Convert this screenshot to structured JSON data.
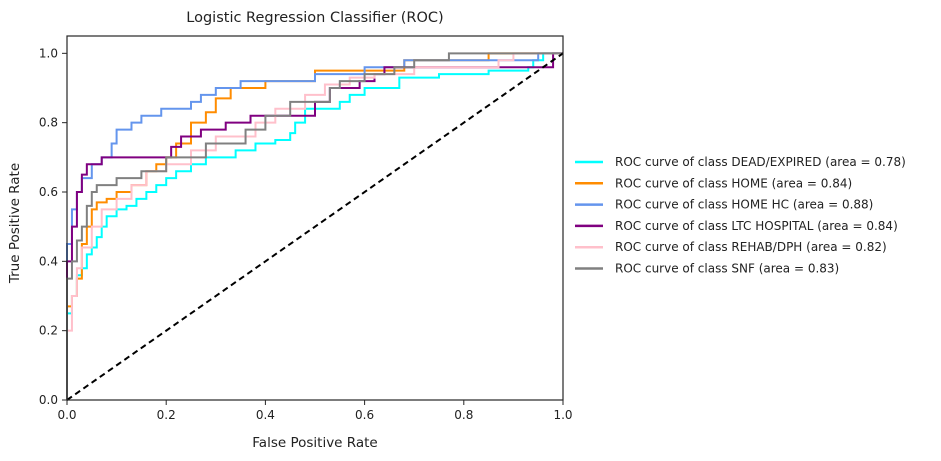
{
  "chart_data": {
    "type": "line",
    "title": "Logistic Regression Classifier (ROC)",
    "xlabel": "False Positive Rate",
    "ylabel": "True Positive Rate",
    "xlim": [
      0.0,
      1.0
    ],
    "ylim": [
      0.0,
      1.05
    ],
    "xticks": [
      0.0,
      0.2,
      0.4,
      0.6,
      0.8,
      1.0
    ],
    "yticks": [
      0.0,
      0.2,
      0.4,
      0.6,
      0.8,
      1.0
    ],
    "xtick_labels": [
      "0.0",
      "0.2",
      "0.4",
      "0.6",
      "0.8",
      "1.0"
    ],
    "ytick_labels": [
      "0.0",
      "0.2",
      "0.4",
      "0.6",
      "0.8",
      "1.0"
    ],
    "grid": false,
    "legend_position": "outside-right",
    "diagonal": {
      "x": [
        0,
        1
      ],
      "y": [
        0,
        1
      ],
      "color": "#000000",
      "style": "dashed"
    },
    "series": [
      {
        "name": "ROC curve of class DEAD/EXPIRED (area = 0.78)",
        "color": "#00FFFF",
        "points": [
          [
            0.0,
            0.0
          ],
          [
            0.0,
            0.25
          ],
          [
            0.01,
            0.25
          ],
          [
            0.01,
            0.3
          ],
          [
            0.02,
            0.3
          ],
          [
            0.02,
            0.36
          ],
          [
            0.03,
            0.36
          ],
          [
            0.03,
            0.38
          ],
          [
            0.04,
            0.38
          ],
          [
            0.04,
            0.42
          ],
          [
            0.05,
            0.42
          ],
          [
            0.05,
            0.44
          ],
          [
            0.06,
            0.44
          ],
          [
            0.06,
            0.47
          ],
          [
            0.07,
            0.47
          ],
          [
            0.07,
            0.5
          ],
          [
            0.08,
            0.5
          ],
          [
            0.08,
            0.53
          ],
          [
            0.1,
            0.53
          ],
          [
            0.1,
            0.55
          ],
          [
            0.12,
            0.55
          ],
          [
            0.12,
            0.56
          ],
          [
            0.14,
            0.56
          ],
          [
            0.14,
            0.58
          ],
          [
            0.16,
            0.58
          ],
          [
            0.16,
            0.6
          ],
          [
            0.18,
            0.6
          ],
          [
            0.18,
            0.62
          ],
          [
            0.2,
            0.62
          ],
          [
            0.2,
            0.64
          ],
          [
            0.22,
            0.64
          ],
          [
            0.22,
            0.66
          ],
          [
            0.25,
            0.66
          ],
          [
            0.25,
            0.68
          ],
          [
            0.28,
            0.68
          ],
          [
            0.28,
            0.7
          ],
          [
            0.34,
            0.7
          ],
          [
            0.34,
            0.72
          ],
          [
            0.38,
            0.72
          ],
          [
            0.38,
            0.74
          ],
          [
            0.42,
            0.74
          ],
          [
            0.42,
            0.75
          ],
          [
            0.45,
            0.75
          ],
          [
            0.45,
            0.77
          ],
          [
            0.46,
            0.77
          ],
          [
            0.46,
            0.8
          ],
          [
            0.48,
            0.8
          ],
          [
            0.48,
            0.84
          ],
          [
            0.55,
            0.84
          ],
          [
            0.55,
            0.86
          ],
          [
            0.57,
            0.86
          ],
          [
            0.57,
            0.88
          ],
          [
            0.6,
            0.88
          ],
          [
            0.6,
            0.9
          ],
          [
            0.67,
            0.9
          ],
          [
            0.67,
            0.93
          ],
          [
            0.75,
            0.93
          ],
          [
            0.75,
            0.94
          ],
          [
            0.85,
            0.94
          ],
          [
            0.85,
            0.95
          ],
          [
            0.93,
            0.95
          ],
          [
            0.93,
            0.96
          ],
          [
            0.94,
            0.96
          ],
          [
            0.94,
            0.98
          ],
          [
            0.96,
            0.98
          ],
          [
            0.96,
            1.0
          ],
          [
            1.0,
            1.0
          ]
        ]
      },
      {
        "name": "ROC curve of class HOME (area = 0.84)",
        "color": "#FF8C00",
        "points": [
          [
            0.0,
            0.0
          ],
          [
            0.0,
            0.27
          ],
          [
            0.01,
            0.27
          ],
          [
            0.01,
            0.3
          ],
          [
            0.02,
            0.3
          ],
          [
            0.02,
            0.35
          ],
          [
            0.03,
            0.35
          ],
          [
            0.03,
            0.45
          ],
          [
            0.04,
            0.45
          ],
          [
            0.04,
            0.5
          ],
          [
            0.05,
            0.5
          ],
          [
            0.05,
            0.55
          ],
          [
            0.06,
            0.55
          ],
          [
            0.06,
            0.57
          ],
          [
            0.08,
            0.57
          ],
          [
            0.08,
            0.58
          ],
          [
            0.1,
            0.58
          ],
          [
            0.1,
            0.6
          ],
          [
            0.13,
            0.6
          ],
          [
            0.13,
            0.62
          ],
          [
            0.16,
            0.62
          ],
          [
            0.16,
            0.66
          ],
          [
            0.18,
            0.66
          ],
          [
            0.18,
            0.68
          ],
          [
            0.2,
            0.68
          ],
          [
            0.2,
            0.7
          ],
          [
            0.22,
            0.7
          ],
          [
            0.22,
            0.74
          ],
          [
            0.25,
            0.74
          ],
          [
            0.25,
            0.8
          ],
          [
            0.28,
            0.8
          ],
          [
            0.28,
            0.83
          ],
          [
            0.3,
            0.83
          ],
          [
            0.3,
            0.87
          ],
          [
            0.33,
            0.87
          ],
          [
            0.33,
            0.9
          ],
          [
            0.4,
            0.9
          ],
          [
            0.4,
            0.92
          ],
          [
            0.5,
            0.92
          ],
          [
            0.5,
            0.95
          ],
          [
            0.68,
            0.95
          ],
          [
            0.68,
            0.98
          ],
          [
            0.85,
            0.98
          ],
          [
            0.85,
            1.0
          ],
          [
            1.0,
            1.0
          ]
        ]
      },
      {
        "name": "ROC curve of class HOME HC (area = 0.88)",
        "color": "#6495ED",
        "points": [
          [
            0.0,
            0.0
          ],
          [
            0.0,
            0.45
          ],
          [
            0.01,
            0.45
          ],
          [
            0.01,
            0.55
          ],
          [
            0.02,
            0.55
          ],
          [
            0.02,
            0.6
          ],
          [
            0.03,
            0.6
          ],
          [
            0.03,
            0.64
          ],
          [
            0.05,
            0.64
          ],
          [
            0.05,
            0.68
          ],
          [
            0.07,
            0.68
          ],
          [
            0.07,
            0.7
          ],
          [
            0.09,
            0.7
          ],
          [
            0.09,
            0.74
          ],
          [
            0.1,
            0.74
          ],
          [
            0.1,
            0.78
          ],
          [
            0.13,
            0.78
          ],
          [
            0.13,
            0.8
          ],
          [
            0.15,
            0.8
          ],
          [
            0.15,
            0.82
          ],
          [
            0.19,
            0.82
          ],
          [
            0.19,
            0.84
          ],
          [
            0.25,
            0.84
          ],
          [
            0.25,
            0.86
          ],
          [
            0.27,
            0.86
          ],
          [
            0.27,
            0.88
          ],
          [
            0.3,
            0.88
          ],
          [
            0.3,
            0.9
          ],
          [
            0.35,
            0.9
          ],
          [
            0.35,
            0.92
          ],
          [
            0.5,
            0.92
          ],
          [
            0.5,
            0.94
          ],
          [
            0.6,
            0.94
          ],
          [
            0.6,
            0.96
          ],
          [
            0.68,
            0.96
          ],
          [
            0.68,
            0.98
          ],
          [
            0.95,
            0.98
          ],
          [
            0.95,
            1.0
          ],
          [
            1.0,
            1.0
          ]
        ]
      },
      {
        "name": "ROC curve of class LTC HOSPITAL (area = 0.84)",
        "color": "#800080",
        "points": [
          [
            0.0,
            0.0
          ],
          [
            0.0,
            0.4
          ],
          [
            0.01,
            0.4
          ],
          [
            0.01,
            0.5
          ],
          [
            0.02,
            0.5
          ],
          [
            0.02,
            0.6
          ],
          [
            0.03,
            0.6
          ],
          [
            0.03,
            0.65
          ],
          [
            0.04,
            0.65
          ],
          [
            0.04,
            0.68
          ],
          [
            0.07,
            0.68
          ],
          [
            0.07,
            0.7
          ],
          [
            0.21,
            0.7
          ],
          [
            0.21,
            0.73
          ],
          [
            0.23,
            0.73
          ],
          [
            0.23,
            0.76
          ],
          [
            0.27,
            0.76
          ],
          [
            0.27,
            0.78
          ],
          [
            0.32,
            0.78
          ],
          [
            0.32,
            0.8
          ],
          [
            0.37,
            0.8
          ],
          [
            0.37,
            0.82
          ],
          [
            0.5,
            0.82
          ],
          [
            0.5,
            0.86
          ],
          [
            0.53,
            0.86
          ],
          [
            0.53,
            0.9
          ],
          [
            0.59,
            0.9
          ],
          [
            0.59,
            0.92
          ],
          [
            0.62,
            0.92
          ],
          [
            0.62,
            0.94
          ],
          [
            0.64,
            0.94
          ],
          [
            0.64,
            0.96
          ],
          [
            0.98,
            0.96
          ],
          [
            0.98,
            1.0
          ],
          [
            1.0,
            1.0
          ]
        ]
      },
      {
        "name": "ROC curve of class REHAB/DPH (area = 0.82)",
        "color": "#FFC0CB",
        "points": [
          [
            0.0,
            0.0
          ],
          [
            0.0,
            0.2
          ],
          [
            0.01,
            0.2
          ],
          [
            0.01,
            0.3
          ],
          [
            0.02,
            0.3
          ],
          [
            0.02,
            0.38
          ],
          [
            0.03,
            0.38
          ],
          [
            0.03,
            0.44
          ],
          [
            0.05,
            0.44
          ],
          [
            0.05,
            0.5
          ],
          [
            0.07,
            0.5
          ],
          [
            0.07,
            0.55
          ],
          [
            0.1,
            0.55
          ],
          [
            0.1,
            0.58
          ],
          [
            0.13,
            0.58
          ],
          [
            0.13,
            0.62
          ],
          [
            0.16,
            0.62
          ],
          [
            0.16,
            0.66
          ],
          [
            0.2,
            0.66
          ],
          [
            0.2,
            0.68
          ],
          [
            0.25,
            0.68
          ],
          [
            0.25,
            0.72
          ],
          [
            0.3,
            0.72
          ],
          [
            0.3,
            0.76
          ],
          [
            0.38,
            0.76
          ],
          [
            0.38,
            0.8
          ],
          [
            0.42,
            0.8
          ],
          [
            0.42,
            0.84
          ],
          [
            0.48,
            0.84
          ],
          [
            0.48,
            0.88
          ],
          [
            0.52,
            0.88
          ],
          [
            0.52,
            0.91
          ],
          [
            0.57,
            0.91
          ],
          [
            0.57,
            0.93
          ],
          [
            0.62,
            0.93
          ],
          [
            0.62,
            0.94
          ],
          [
            0.7,
            0.94
          ],
          [
            0.7,
            0.96
          ],
          [
            0.87,
            0.96
          ],
          [
            0.87,
            0.98
          ],
          [
            0.9,
            0.98
          ],
          [
            0.9,
            1.0
          ],
          [
            1.0,
            1.0
          ]
        ]
      },
      {
        "name": "ROC curve of class SNF (area = 0.83)",
        "color": "#808080",
        "points": [
          [
            0.0,
            0.0
          ],
          [
            0.0,
            0.35
          ],
          [
            0.01,
            0.35
          ],
          [
            0.01,
            0.4
          ],
          [
            0.02,
            0.4
          ],
          [
            0.02,
            0.46
          ],
          [
            0.03,
            0.46
          ],
          [
            0.03,
            0.5
          ],
          [
            0.04,
            0.5
          ],
          [
            0.04,
            0.56
          ],
          [
            0.05,
            0.56
          ],
          [
            0.05,
            0.6
          ],
          [
            0.06,
            0.6
          ],
          [
            0.06,
            0.62
          ],
          [
            0.1,
            0.62
          ],
          [
            0.1,
            0.64
          ],
          [
            0.15,
            0.64
          ],
          [
            0.15,
            0.66
          ],
          [
            0.2,
            0.66
          ],
          [
            0.2,
            0.7
          ],
          [
            0.28,
            0.7
          ],
          [
            0.28,
            0.74
          ],
          [
            0.36,
            0.74
          ],
          [
            0.36,
            0.78
          ],
          [
            0.4,
            0.78
          ],
          [
            0.4,
            0.82
          ],
          [
            0.45,
            0.82
          ],
          [
            0.45,
            0.86
          ],
          [
            0.53,
            0.86
          ],
          [
            0.53,
            0.9
          ],
          [
            0.55,
            0.9
          ],
          [
            0.55,
            0.92
          ],
          [
            0.6,
            0.92
          ],
          [
            0.6,
            0.94
          ],
          [
            0.66,
            0.94
          ],
          [
            0.66,
            0.96
          ],
          [
            0.7,
            0.96
          ],
          [
            0.7,
            0.98
          ],
          [
            0.77,
            0.98
          ],
          [
            0.77,
            1.0
          ],
          [
            1.0,
            1.0
          ]
        ]
      }
    ]
  }
}
